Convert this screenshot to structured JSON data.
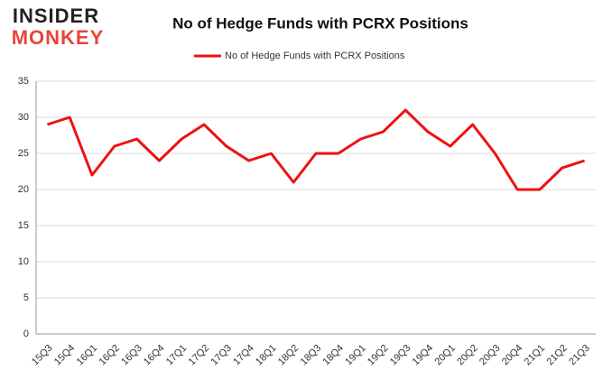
{
  "brand": {
    "line1": "INSIDER",
    "line2": "MONKEY"
  },
  "chart_data": {
    "type": "line",
    "title": "No of Hedge Funds with PCRX Positions",
    "categories": [
      "15Q3",
      "15Q4",
      "16Q1",
      "16Q2",
      "16Q3",
      "16Q4",
      "17Q1",
      "17Q2",
      "17Q3",
      "17Q4",
      "18Q1",
      "18Q2",
      "18Q3",
      "18Q4",
      "19Q1",
      "19Q2",
      "19Q3",
      "19Q4",
      "20Q1",
      "20Q2",
      "20Q3",
      "20Q4",
      "21Q1",
      "21Q2",
      "21Q3"
    ],
    "series": [
      {
        "name": "No of Hedge Funds with PCRX Positions",
        "color": "#ee1111",
        "values": [
          29,
          30,
          22,
          26,
          27,
          24,
          27,
          29,
          26,
          24,
          25,
          21,
          25,
          25,
          27,
          28,
          31,
          28,
          26,
          29,
          25,
          20,
          20,
          23,
          24
        ]
      }
    ],
    "ylim": [
      0,
      35
    ],
    "yticks": [
      0,
      5,
      10,
      15,
      20,
      25,
      30,
      35
    ],
    "grid": true,
    "legend": "top"
  }
}
